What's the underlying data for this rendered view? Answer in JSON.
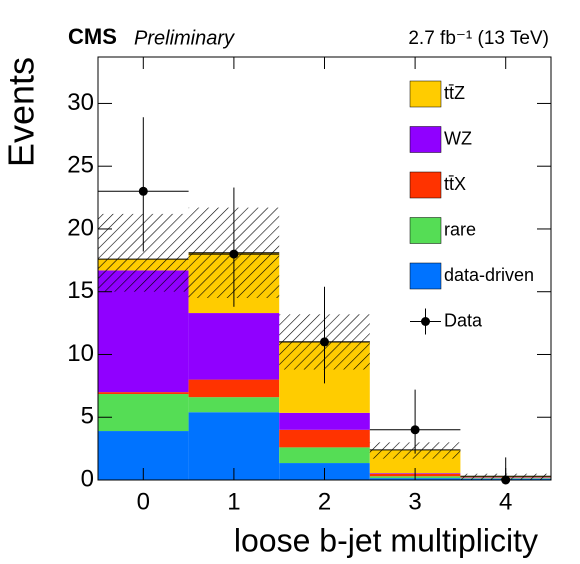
{
  "chart_data": {
    "type": "histogram",
    "experiment": "CMS",
    "subtitle": "Preliminary",
    "lumi": "2.7 fb⁻¹ (13 TeV)",
    "x_label": "loose b-jet multiplicity",
    "y_label": "Events",
    "bins": [
      -0.5,
      0.5,
      1.5,
      2.5,
      3.5,
      4.5
    ],
    "xlim": [
      -0.5,
      4.5
    ],
    "xticks": [
      0,
      1,
      2,
      3,
      4
    ],
    "ylim": [
      0,
      33.7
    ],
    "yticks": [
      0,
      5,
      10,
      15,
      20,
      25,
      30
    ],
    "stacked": true,
    "series": [
      {
        "name": "data-driven",
        "color": "#0073ff",
        "values": [
          3.9,
          5.4,
          1.35,
          0.15,
          0.1
        ]
      },
      {
        "name": "rare",
        "color": "#55dd55",
        "values": [
          2.95,
          1.2,
          1.25,
          0.15,
          0.05
        ]
      },
      {
        "name": "tt̄X",
        "color": "#ff3300",
        "values": [
          0.15,
          1.4,
          1.4,
          0.2,
          0.0
        ]
      },
      {
        "name": "WZ",
        "color": "#9000ff",
        "values": [
          9.7,
          5.3,
          1.35,
          0.05,
          0.05
        ]
      },
      {
        "name": "tt̄Z",
        "color": "#ffcc00",
        "values": [
          0.9,
          4.8,
          5.65,
          1.85,
          0.1
        ]
      }
    ],
    "band": {
      "low": [
        15.0,
        14.5,
        8.8,
        1.7,
        0.0
      ],
      "high": [
        21.2,
        21.7,
        13.2,
        3.0,
        0.5
      ]
    },
    "data": {
      "name": "Data",
      "color": "#000000",
      "values": [
        23,
        18,
        11,
        4,
        0
      ],
      "err_low": [
        4.8,
        4.2,
        3.3,
        1.9,
        0
      ],
      "err_high": [
        5.9,
        5.3,
        4.4,
        3.2,
        1.8
      ]
    }
  }
}
